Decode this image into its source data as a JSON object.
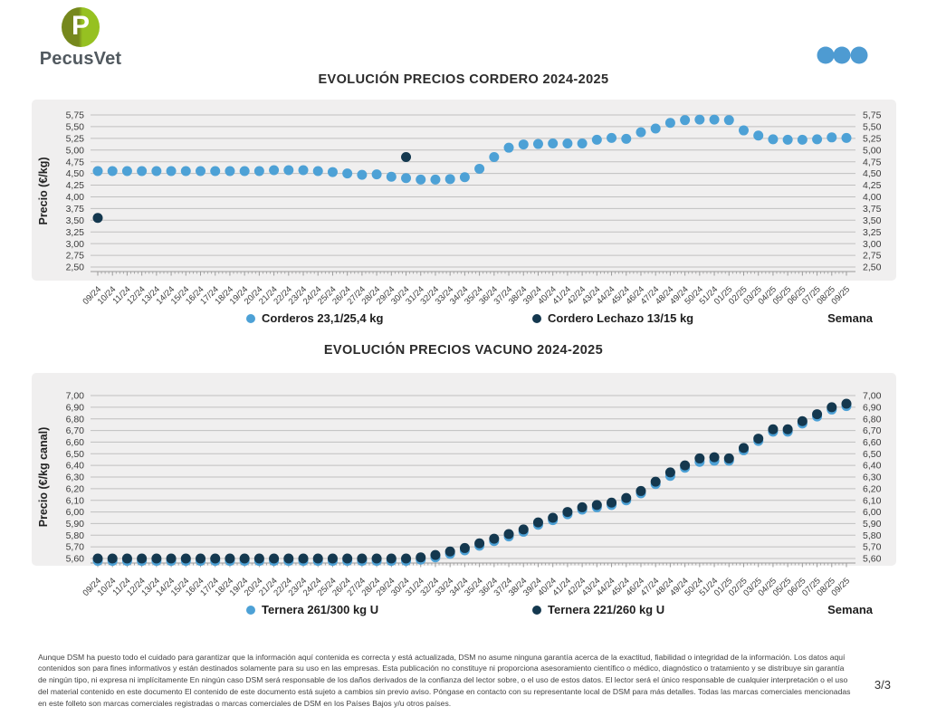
{
  "header": {
    "logo_text": "PecusVet",
    "logo_initial": "P",
    "logo_green_dark": "#76881d",
    "logo_green_light": "#96c121",
    "menu_dots_color": "#4e9bd2"
  },
  "colors": {
    "light_blue": "#4da1d6",
    "dark_navy": "#14384f",
    "band_bg": "#f0efef",
    "gridline": "#bfbfbf",
    "ruler": "#9a9a9a"
  },
  "chart_data": [
    {
      "type": "scatter",
      "title": "EVOLUCIÓN PRECIOS CORDERO 2024-2025",
      "ylabel": "Precio (€/kg)",
      "xlabel": "Semana",
      "ylim": [
        2.5,
        5.75
      ],
      "ystep": 0.25,
      "grid": true,
      "yticks": [
        "5,75",
        "5,50",
        "5,25",
        "5,00",
        "4,75",
        "4,50",
        "4,25",
        "4,00",
        "3,75",
        "3,50",
        "3,25",
        "3,00",
        "2,75",
        "2,50"
      ],
      "weeks": [
        "09/24",
        "10/24",
        "11/24",
        "12/24",
        "13/24",
        "14/24",
        "15/24",
        "16/24",
        "17/24",
        "18/24",
        "19/24",
        "20/24",
        "21/24",
        "22/24",
        "23/24",
        "24/24",
        "25/24",
        "26/24",
        "27/24",
        "28/24",
        "29/24",
        "30/24",
        "31/24",
        "32/24",
        "33/24",
        "34/24",
        "35/24",
        "36/24",
        "37/24",
        "38/24",
        "39/24",
        "40/24",
        "41/24",
        "42/24",
        "43/24",
        "44/24",
        "45/24",
        "46/24",
        "47/24",
        "48/24",
        "49/24",
        "50/24",
        "51/24",
        "01/25",
        "02/25",
        "03/25",
        "04/25",
        "05/25",
        "06/25",
        "07/25",
        "08/25",
        "09/25"
      ],
      "series": [
        {
          "name": "Corderos 23,1/25,4 kg",
          "color": "#4da1d6",
          "values": [
            4.55,
            4.55,
            4.55,
            4.55,
            4.55,
            4.55,
            4.55,
            4.55,
            4.55,
            4.55,
            4.55,
            4.55,
            4.57,
            4.57,
            4.57,
            4.55,
            4.53,
            4.5,
            4.47,
            4.48,
            4.43,
            4.4,
            4.37,
            4.37,
            4.38,
            4.42,
            4.6,
            4.85,
            5.05,
            5.12,
            5.13,
            5.14,
            5.14,
            5.14,
            5.22,
            5.26,
            5.24,
            5.38,
            5.46,
            5.58,
            5.64,
            5.65,
            5.65,
            5.64,
            5.42,
            5.31,
            5.23,
            5.22,
            5.22,
            5.23,
            5.27,
            5.26
          ]
        },
        {
          "name": "Cordero Lechazo 13/15 kg",
          "color": "#14384f",
          "points": [
            {
              "week": "09/24",
              "value": 3.55
            },
            {
              "week": "30/24",
              "value": 4.85
            }
          ]
        }
      ]
    },
    {
      "type": "scatter",
      "title": "EVOLUCIÓN PRECIOS VACUNO 2024-2025",
      "ylabel": "Precio (€/kg canal)",
      "xlabel": "Semana",
      "ylim": [
        5.6,
        7.0
      ],
      "ystep": 0.1,
      "grid": true,
      "yticks": [
        "7,00",
        "6,90",
        "6,80",
        "6,70",
        "6,60",
        "6,50",
        "6,40",
        "6,30",
        "6,20",
        "6,10",
        "6,00",
        "5,90",
        "5,80",
        "5,70",
        "5,60"
      ],
      "weeks": [
        "09/24",
        "10/24",
        "11/24",
        "12/24",
        "13/24",
        "14/24",
        "15/24",
        "16/24",
        "17/24",
        "18/24",
        "19/24",
        "20/24",
        "21/24",
        "22/24",
        "23/24",
        "24/24",
        "25/24",
        "26/24",
        "27/24",
        "28/24",
        "29/24",
        "30/24",
        "31/24",
        "32/24",
        "33/24",
        "34/24",
        "35/24",
        "36/24",
        "37/24",
        "38/24",
        "39/24",
        "40/24",
        "41/24",
        "42/24",
        "43/24",
        "44/24",
        "45/24",
        "46/24",
        "47/24",
        "48/24",
        "49/24",
        "50/24",
        "51/24",
        "01/25",
        "02/25",
        "03/25",
        "04/25",
        "05/25",
        "06/25",
        "07/25",
        "08/25",
        "09/25"
      ],
      "series": [
        {
          "name": "Ternera 261/300 kg U",
          "color": "#4da1d6",
          "values": [
            5.58,
            5.58,
            5.58,
            5.58,
            5.58,
            5.58,
            5.58,
            5.58,
            5.58,
            5.58,
            5.58,
            5.58,
            5.58,
            5.58,
            5.58,
            5.58,
            5.58,
            5.58,
            5.58,
            5.58,
            5.58,
            5.58,
            5.59,
            5.61,
            5.64,
            5.67,
            5.71,
            5.75,
            5.79,
            5.83,
            5.89,
            5.93,
            5.98,
            6.02,
            6.04,
            6.06,
            6.1,
            6.16,
            6.24,
            6.31,
            6.38,
            6.43,
            6.44,
            6.44,
            6.53,
            6.61,
            6.69,
            6.69,
            6.76,
            6.82,
            6.88,
            6.91
          ]
        },
        {
          "name": "Ternera 221/260 kg U",
          "color": "#14384f",
          "values": [
            5.6,
            5.6,
            5.6,
            5.6,
            5.6,
            5.6,
            5.6,
            5.6,
            5.6,
            5.6,
            5.6,
            5.6,
            5.6,
            5.6,
            5.6,
            5.6,
            5.6,
            5.6,
            5.6,
            5.6,
            5.6,
            5.6,
            5.61,
            5.63,
            5.66,
            5.69,
            5.73,
            5.77,
            5.81,
            5.85,
            5.91,
            5.95,
            6.0,
            6.04,
            6.06,
            6.08,
            6.12,
            6.18,
            6.26,
            6.34,
            6.4,
            6.46,
            6.47,
            6.46,
            6.55,
            6.63,
            6.71,
            6.71,
            6.78,
            6.84,
            6.9,
            6.93
          ]
        }
      ]
    }
  ],
  "footer": {
    "disclaimer": "Aunque DSM ha puesto todo el cuidado para garantizar que la información aquí contenida es correcta y está actualizada, DSM no asume ninguna garantía acerca de la exactitud, fiabilidad o integridad de la información. Los datos aquí contenidos son para fines informativos y están destinados solamente para su uso en las empresas. Esta publicación no constituye ni proporciona asesoramiento científico o médico, diagnóstico o tratamiento y se distribuye sin garantía de ningún tipo, ni expresa ni implícitamente En ningún caso DSM será responsable de los daños derivados de la confianza del lector sobre, o el uso de estos datos. El lector será el único responsable de cualquier interpretación o el uso del material contenido en este documento El contenido de este documento está sujeto a cambios sin previo aviso. Póngase en contacto con su representante local de DSM para más detalles. Todas las marcas comerciales mencionadas en este folleto son marcas comerciales registradas o marcas comerciales de DSM en los Países Bajos y/u otros países.",
    "page": "3/3"
  }
}
